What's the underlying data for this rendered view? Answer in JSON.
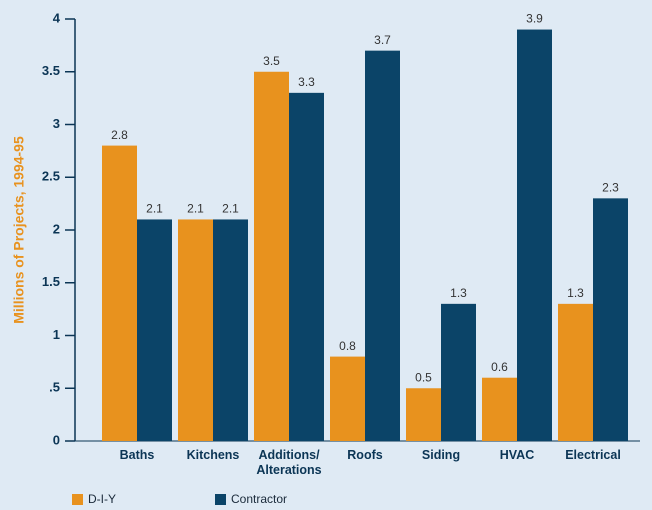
{
  "chart_data": {
    "type": "bar",
    "ylabel": "Millions of Projects, 1994-95",
    "categories": [
      "Baths",
      "Kitchens",
      "Additions/ Alterations",
      "Roofs",
      "Siding",
      "HVAC",
      "Electrical"
    ],
    "series": [
      {
        "name": "D-I-Y",
        "color": "#e8921e",
        "values": [
          2.8,
          2.1,
          3.5,
          0.8,
          0.5,
          0.6,
          1.3
        ]
      },
      {
        "name": "Contractor",
        "color": "#0b4468",
        "values": [
          2.1,
          2.1,
          3.3,
          3.7,
          1.3,
          3.9,
          2.3
        ]
      }
    ],
    "ylim": [
      0,
      4
    ],
    "yticks": [
      0,
      {
        "value": 0.5,
        "label": ".5"
      },
      1,
      1.5,
      2,
      2.5,
      3,
      3.5,
      4
    ]
  }
}
